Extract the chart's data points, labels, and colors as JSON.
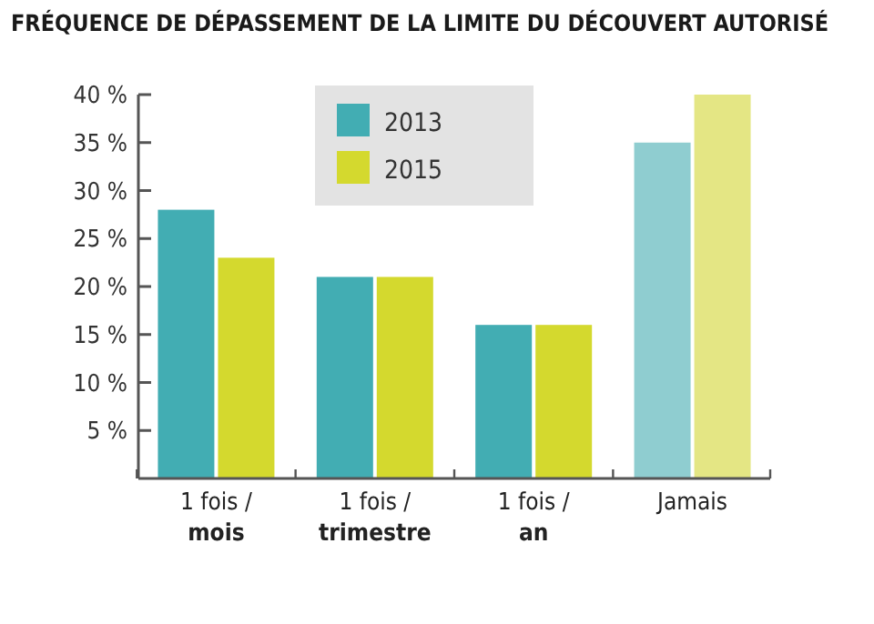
{
  "chart_data": {
    "type": "bar",
    "title": "FRÉQUENCE DE DÉPASSEMENT DE LA LIMITE DU DÉCOUVERT AUTORISÉ",
    "categories": [
      "1 fois /\nmois",
      "1 fois /\ntrimestre",
      "1 fois /\nan",
      "Jamais"
    ],
    "series": [
      {
        "name": "2013",
        "color": "#42adb3",
        "colors": [
          "#42adb3",
          "#42adb3",
          "#42adb3",
          "#8fcdd0"
        ],
        "values": [
          28,
          21,
          16,
          35
        ]
      },
      {
        "name": "2015",
        "color": "#d4d92e",
        "colors": [
          "#d4d92e",
          "#d4d92e",
          "#d4d92e",
          "#e4e684"
        ],
        "values": [
          23,
          21,
          16,
          40
        ]
      }
    ],
    "ylim": [
      0,
      40
    ],
    "yticks": [
      {
        "value": 5,
        "label": "5 %"
      },
      {
        "value": 10,
        "label": "10 %"
      },
      {
        "value": 15,
        "label": "15 %"
      },
      {
        "value": 20,
        "label": "20 %"
      },
      {
        "value": 25,
        "label": "25 %"
      },
      {
        "value": 30,
        "label": "30 %"
      },
      {
        "value": 35,
        "label": "35 %"
      },
      {
        "value": 40,
        "label": "40 %"
      }
    ],
    "grid": false,
    "legend": "top"
  }
}
